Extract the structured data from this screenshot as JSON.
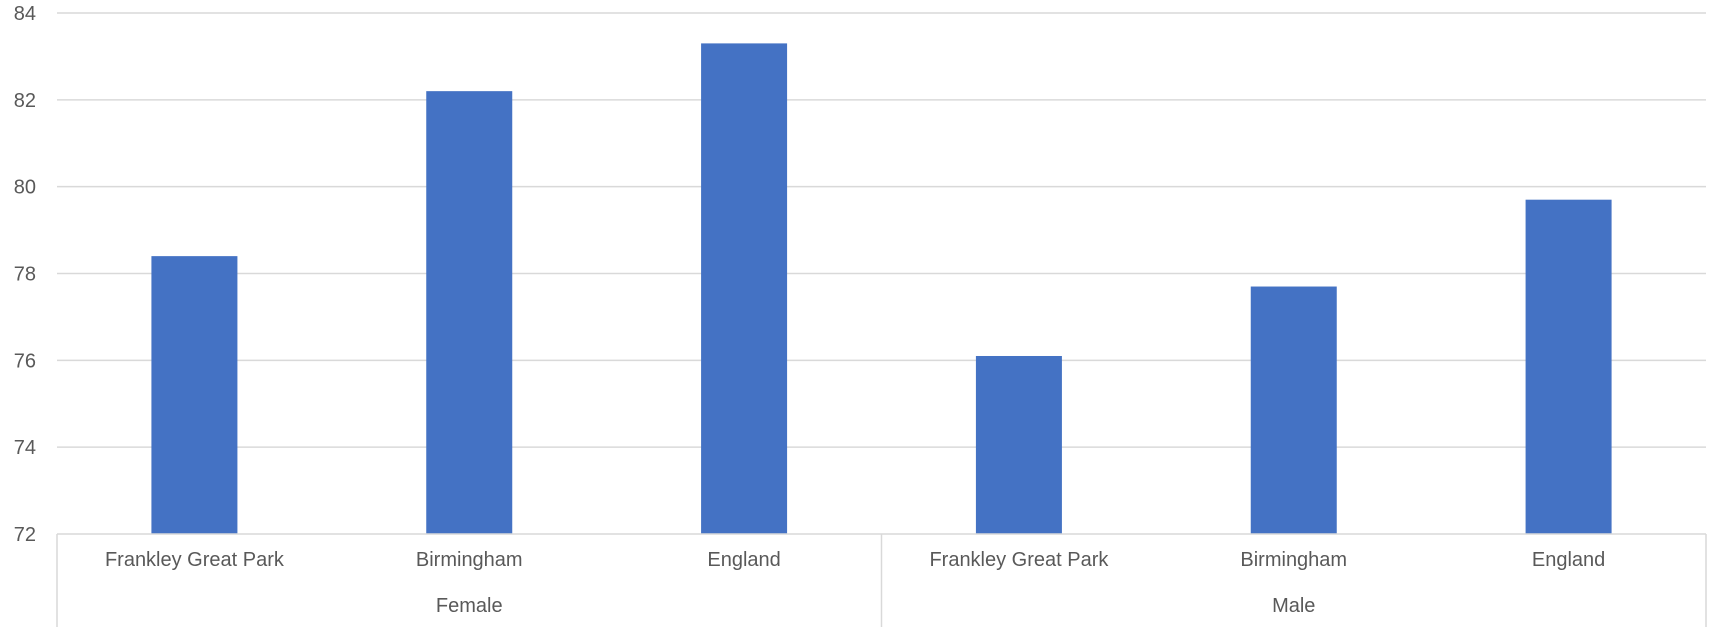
{
  "chart_data": {
    "type": "bar",
    "title": "",
    "xlabel": "",
    "ylabel": "",
    "ylim": [
      72,
      84
    ],
    "yticks": [
      72,
      74,
      76,
      78,
      80,
      82,
      84
    ],
    "grid": true,
    "legend": "none",
    "groups": [
      {
        "label": "Female",
        "categories": [
          "Frankley Great Park",
          "Birmingham",
          "England"
        ],
        "values": [
          78.4,
          82.2,
          83.3
        ]
      },
      {
        "label": "Male",
        "categories": [
          "Frankley Great Park",
          "Birmingham",
          "England"
        ],
        "values": [
          76.1,
          77.7,
          79.7
        ]
      }
    ],
    "colors": {
      "bar": "#4472C4",
      "grid": "#D9D9D9",
      "tick_text": "#595959"
    }
  }
}
